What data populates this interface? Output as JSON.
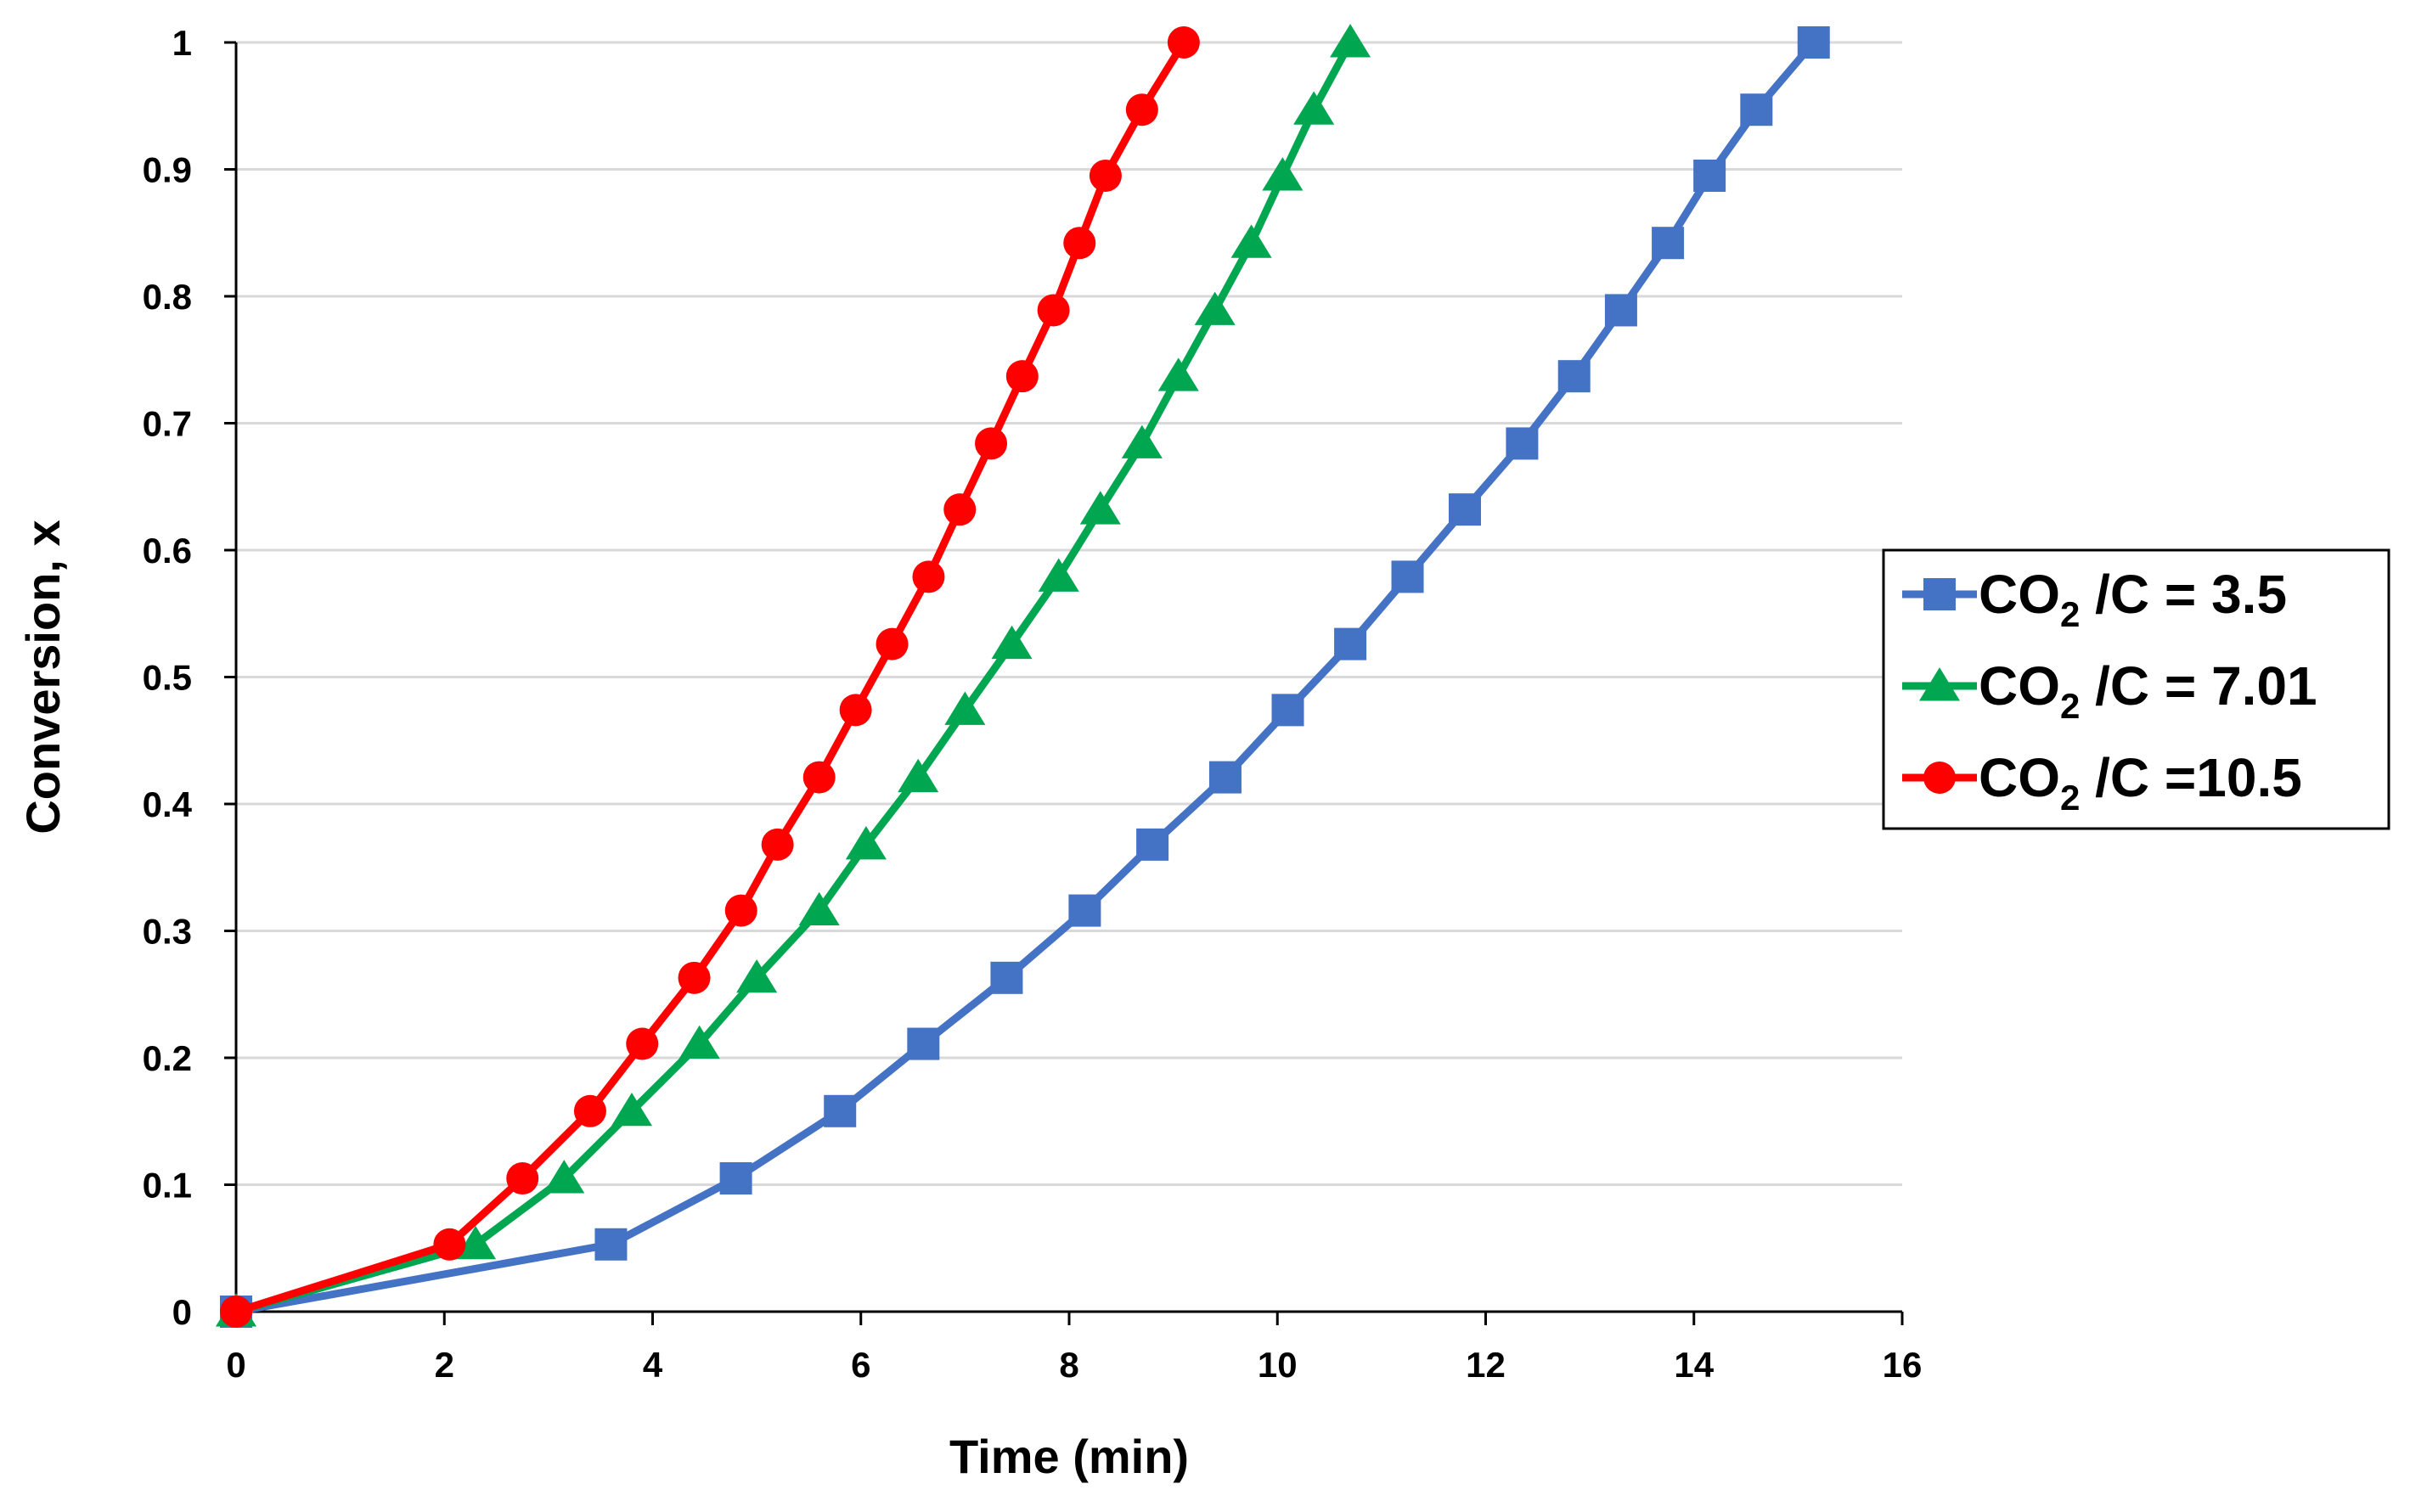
{
  "chart_data": {
    "type": "line",
    "title": "",
    "xlabel": "Time (min)",
    "ylabel": "Conversion, x",
    "xlim": [
      0,
      16
    ],
    "ylim": [
      0,
      1
    ],
    "xticks": [
      0,
      2,
      4,
      6,
      8,
      10,
      12,
      14,
      16
    ],
    "yticks": [
      0,
      0.1,
      0.2,
      0.3,
      0.4,
      0.5,
      0.6,
      0.7,
      0.8,
      0.9,
      1
    ],
    "xtick_labels": [
      "0",
      "2",
      "4",
      "6",
      "8",
      "10",
      "12",
      "14",
      "16"
    ],
    "ytick_labels": [
      "0",
      "0.1",
      "0.2",
      "0.3",
      "0.4",
      "0.5",
      "0.6",
      "0.7",
      "0.8",
      "0.9",
      "1"
    ],
    "grid": "horizontal",
    "legend_position": "right",
    "series": [
      {
        "name": "CO2 /C = 3.5",
        "label_main": "CO",
        "label_sub": "2",
        "label_rest": " /C = 3.5",
        "color": "#4472C4",
        "marker": "square",
        "x": [
          0,
          3.6,
          4.8,
          5.8,
          6.6,
          7.4,
          8.15,
          8.8,
          9.5,
          10.1,
          10.7,
          11.25,
          11.8,
          12.35,
          12.85,
          13.3,
          13.75,
          14.15,
          14.6,
          15.15
        ],
        "y": [
          0,
          0.053,
          0.105,
          0.158,
          0.211,
          0.263,
          0.316,
          0.368,
          0.421,
          0.474,
          0.526,
          0.579,
          0.632,
          0.684,
          0.737,
          0.789,
          0.842,
          0.895,
          0.947,
          1.0
        ]
      },
      {
        "name": "CO2 /C = 7.01",
        "label_main": "CO",
        "label_sub": "2",
        "label_rest": " /C = 7.01",
        "color": "#00A650",
        "marker": "triangle",
        "x": [
          0,
          2.3,
          3.15,
          3.8,
          4.45,
          5.0,
          5.6,
          6.05,
          6.55,
          7.0,
          7.45,
          7.9,
          8.3,
          8.7,
          9.05,
          9.4,
          9.75,
          10.05,
          10.35,
          10.7
        ],
        "y": [
          0,
          0.053,
          0.105,
          0.158,
          0.211,
          0.263,
          0.316,
          0.368,
          0.421,
          0.474,
          0.526,
          0.579,
          0.632,
          0.684,
          0.737,
          0.789,
          0.842,
          0.895,
          0.947,
          1.0
        ]
      },
      {
        "name": "CO2 /C =10.5",
        "label_main": "CO",
        "label_sub": "2",
        "label_rest": " /C =10.5",
        "color": "#FF0000",
        "marker": "circle",
        "x": [
          0,
          2.05,
          2.75,
          3.4,
          3.9,
          4.4,
          4.85,
          5.2,
          5.6,
          5.95,
          6.3,
          6.65,
          6.95,
          7.25,
          7.55,
          7.85,
          8.1,
          8.35,
          8.7,
          9.1
        ],
        "y": [
          0,
          0.053,
          0.105,
          0.158,
          0.211,
          0.263,
          0.316,
          0.368,
          0.421,
          0.474,
          0.526,
          0.579,
          0.632,
          0.684,
          0.737,
          0.789,
          0.842,
          0.895,
          0.947,
          1.0
        ]
      }
    ]
  }
}
